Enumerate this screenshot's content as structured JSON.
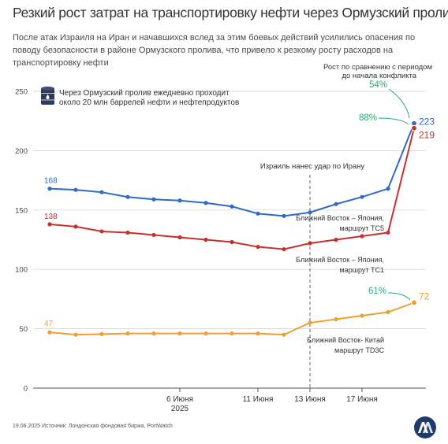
{
  "title": "Резкий рост затрат на транспортировку нефти через Ормузский пролив",
  "subtitle": "После атак Израиля на Иран и начавшихся вслед за этим боевых действий усилились опасения по поводу безопасности в районе Ормузского пролива, что привело к резкому росту расходов на транспортировку нефти",
  "footer": "19.06.2025 Источник: Лондонская фондовая биржа, PortWatch",
  "colors": {
    "blue": "#2f6bc4",
    "red": "#c8302c",
    "orange": "#f0a030",
    "green": "#2fa874",
    "grid": "#cfcfcf",
    "axis": "#555555"
  },
  "icon": "oil-barrel-icon",
  "logo": "aa-logo",
  "chart_data": {
    "type": "line",
    "ylim": [
      0,
      250
    ],
    "yticks": [
      0,
      50,
      100,
      150,
      200,
      250
    ],
    "x": [
      "2025-05-31",
      "2025-06-02",
      "2025-06-03",
      "2025-06-04",
      "2025-06-05",
      "2025-06-06",
      "2025-06-09",
      "2025-06-10",
      "2025-06-11",
      "2025-06-12",
      "2025-06-13",
      "2025-06-16",
      "2025-06-17",
      "2025-06-18",
      "2025-06-19"
    ],
    "x_ticks": [
      {
        "x": "2025-06-06",
        "label": "6 Июня",
        "sublabel": "2025"
      },
      {
        "x": "2025-06-11",
        "label": "11 Июня"
      },
      {
        "x": "2025-06-13",
        "label": "13 Июня"
      },
      {
        "x": "2025-06-17",
        "label": "17 Июня"
      }
    ],
    "series": [
      {
        "name": "Ближний Восток – Япония, маршрут TC5",
        "color": "#2f6bc4",
        "values": [
          168,
          167,
          165,
          161,
          159,
          158,
          156,
          153,
          147,
          145,
          148,
          155,
          161,
          168,
          223
        ],
        "start_label": "168",
        "end_label": "223",
        "change_label": "54%",
        "label_lines": [
          "Ближний Восток – Япония,",
          "маршрут TC5"
        ]
      },
      {
        "name": "Ближний Восток – Япония, маршрут TC1",
        "color": "#c8302c",
        "values": [
          138,
          136,
          132,
          131,
          129,
          127,
          125,
          123,
          119,
          117,
          122,
          125,
          128,
          131,
          219
        ],
        "start_label": "138",
        "end_label": "219",
        "change_label": "88%",
        "label_lines": [
          "Ближний Восток – Япония,",
          "маршрут TC1"
        ]
      },
      {
        "name": "Ближний Восток- Китай маршрут TD3C",
        "color": "#f0a030",
        "values": [
          47,
          45,
          45.5,
          46,
          46,
          46,
          46,
          46,
          46,
          45,
          55,
          58,
          61,
          64,
          72
        ],
        "start_label": "47",
        "end_label": "72",
        "change_label": "61%",
        "label_lines": [
          "Ближний Восток- Китай",
          "маршрут TD3C"
        ]
      }
    ],
    "event_line": {
      "x": "2025-06-13",
      "label": "Израиль нанес удар по Ирану"
    },
    "info_note": [
      "Через Ормузский пролив ежедневно проходит",
      "около 20 млн баррелей нефти и нефтепродуктов"
    ],
    "change_note": [
      "Рост по сравнению с периодом",
      "до начала конфликта"
    ]
  }
}
